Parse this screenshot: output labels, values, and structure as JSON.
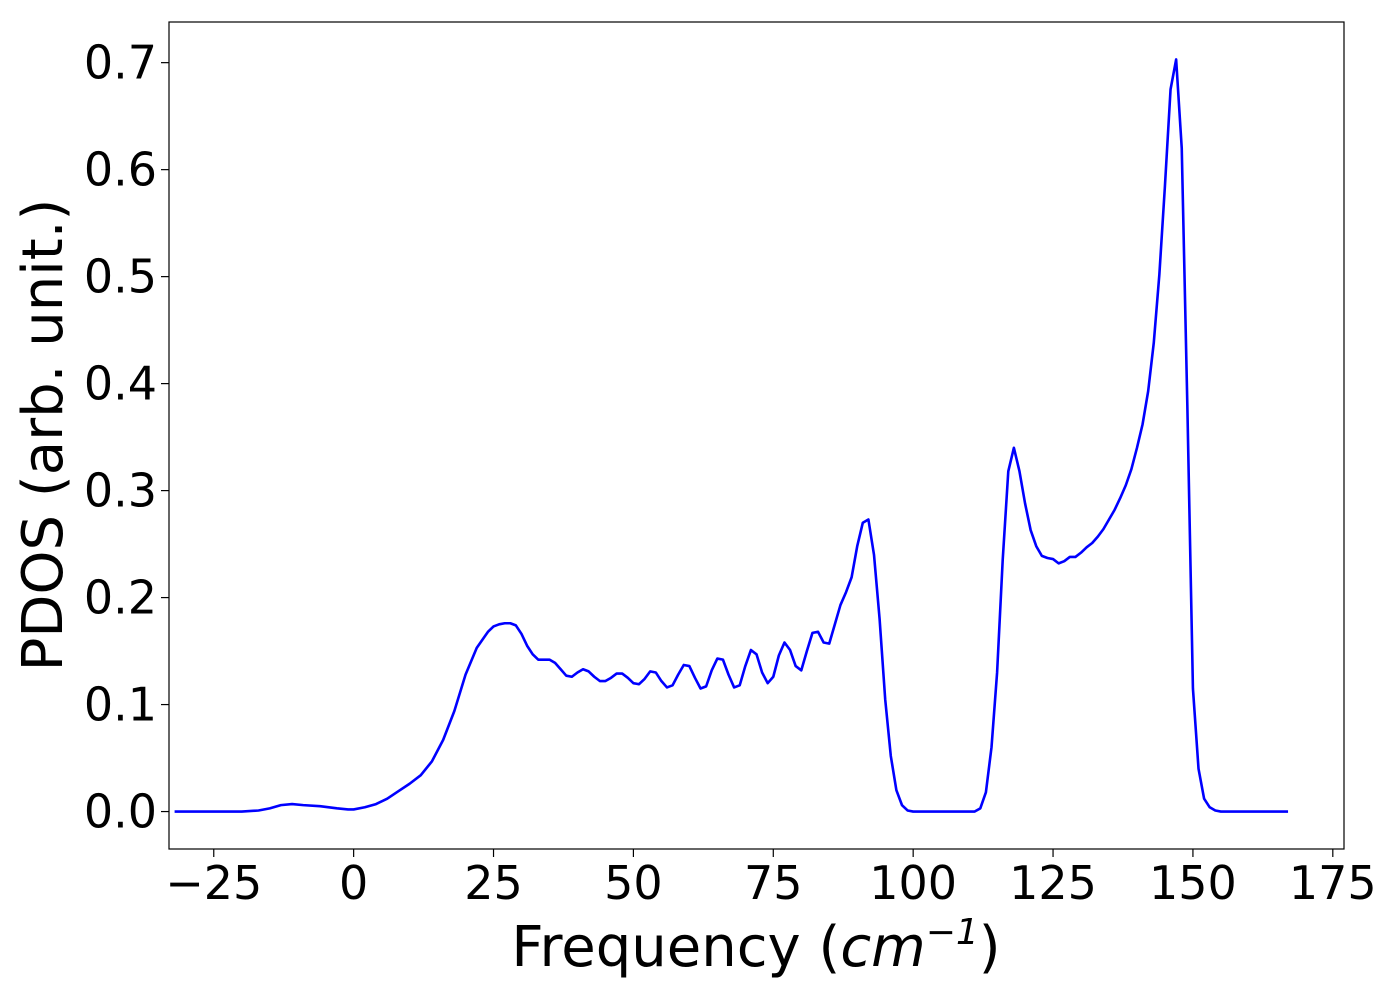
{
  "chart_data": {
    "type": "line",
    "title": "",
    "xlabel": "Frequency",
    "xlabel_paren_open": "(",
    "xlabel_unit_base": "cm",
    "xlabel_unit_exponent": "−1",
    "xlabel_paren_close": ")",
    "ylabel": "PDOS (arb. unit.)",
    "xlim": [
      -33,
      177
    ],
    "ylim": [
      -0.035,
      0.738
    ],
    "x_ticks": [
      -25,
      0,
      25,
      50,
      75,
      100,
      125,
      150,
      175
    ],
    "x_tick_labels": [
      "−25",
      "0",
      "25",
      "50",
      "75",
      "100",
      "125",
      "150",
      "175"
    ],
    "y_ticks": [
      0.0,
      0.1,
      0.2,
      0.3,
      0.4,
      0.5,
      0.6,
      0.7
    ],
    "y_tick_labels": [
      "0.0",
      "0.1",
      "0.2",
      "0.3",
      "0.4",
      "0.5",
      "0.6",
      "0.7"
    ],
    "grid": false,
    "legend": "none",
    "line_color": "#0000ff",
    "series": [
      {
        "x": [
          -32,
          -20,
          -17,
          -15,
          -13,
          -11,
          -9,
          -6,
          -3,
          -1,
          0,
          2,
          4,
          6,
          8,
          10,
          12,
          14,
          16,
          18,
          20,
          22,
          24,
          25,
          26,
          27,
          28,
          29,
          30,
          31,
          32,
          33,
          34,
          35,
          36,
          37,
          38,
          39,
          40,
          41,
          42,
          43,
          44,
          45,
          46,
          47,
          48,
          49,
          50,
          51,
          52,
          53,
          54,
          55,
          56,
          57,
          58,
          59,
          60,
          61,
          62,
          63,
          64,
          65,
          66,
          67,
          68,
          69,
          70,
          71,
          72,
          73,
          74,
          75,
          76,
          77,
          78,
          79,
          80,
          81,
          82,
          83,
          84,
          85,
          86,
          87,
          88,
          89,
          90,
          91,
          92,
          93,
          94,
          95,
          96,
          97,
          98,
          99,
          100,
          105,
          110,
          111,
          112,
          113,
          114,
          115,
          116,
          117,
          118,
          119,
          120,
          121,
          122,
          123,
          124,
          125,
          126,
          127,
          128,
          129,
          130,
          131,
          132,
          133,
          134,
          135,
          136,
          137,
          138,
          139,
          140,
          141,
          142,
          143,
          144,
          145,
          146,
          147,
          148,
          149,
          150,
          151,
          152,
          153,
          154,
          155,
          157,
          160,
          167
        ],
        "y": [
          0.0,
          0.0,
          0.001,
          0.003,
          0.006,
          0.007,
          0.006,
          0.005,
          0.003,
          0.002,
          0.002,
          0.004,
          0.007,
          0.012,
          0.019,
          0.026,
          0.034,
          0.047,
          0.067,
          0.094,
          0.128,
          0.153,
          0.168,
          0.173,
          0.175,
          0.176,
          0.176,
          0.174,
          0.166,
          0.155,
          0.147,
          0.142,
          0.142,
          0.142,
          0.139,
          0.133,
          0.127,
          0.126,
          0.13,
          0.133,
          0.131,
          0.126,
          0.122,
          0.122,
          0.125,
          0.129,
          0.129,
          0.125,
          0.12,
          0.119,
          0.124,
          0.131,
          0.13,
          0.122,
          0.116,
          0.118,
          0.128,
          0.137,
          0.136,
          0.125,
          0.115,
          0.117,
          0.132,
          0.143,
          0.142,
          0.128,
          0.116,
          0.118,
          0.136,
          0.151,
          0.147,
          0.13,
          0.12,
          0.126,
          0.146,
          0.158,
          0.151,
          0.136,
          0.132,
          0.15,
          0.167,
          0.168,
          0.158,
          0.157,
          0.175,
          0.193,
          0.205,
          0.219,
          0.248,
          0.27,
          0.273,
          0.24,
          0.18,
          0.105,
          0.052,
          0.02,
          0.006,
          0.001,
          0.0,
          0.0,
          0.0,
          0.0,
          0.003,
          0.018,
          0.06,
          0.13,
          0.235,
          0.318,
          0.34,
          0.318,
          0.288,
          0.263,
          0.248,
          0.239,
          0.237,
          0.236,
          0.232,
          0.234,
          0.238,
          0.238,
          0.242,
          0.247,
          0.251,
          0.257,
          0.264,
          0.273,
          0.282,
          0.293,
          0.305,
          0.32,
          0.34,
          0.362,
          0.393,
          0.438,
          0.502,
          0.585,
          0.675,
          0.703,
          0.62,
          0.38,
          0.115,
          0.04,
          0.012,
          0.004,
          0.001,
          0.0,
          0.0,
          0.0,
          0.0
        ]
      }
    ]
  }
}
